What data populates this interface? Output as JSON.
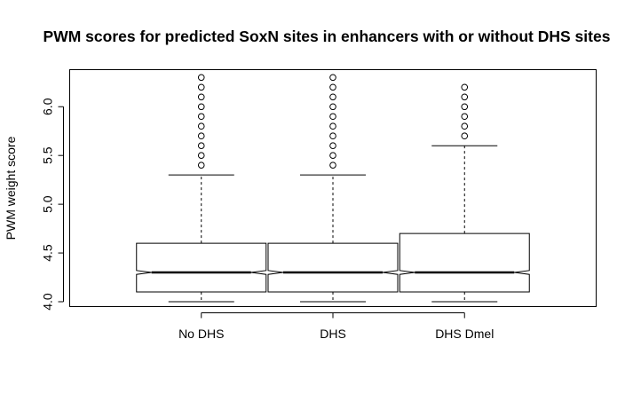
{
  "chart_data": {
    "type": "boxplot",
    "title": "PWM scores for predicted SoxN sites in enhancers with or without DHS sites",
    "xlabel": "",
    "ylabel": "PWM weight score",
    "ylim": [
      3.95,
      6.38
    ],
    "yticks": [
      4.0,
      4.5,
      5.0,
      5.5,
      6.0
    ],
    "ytick_labels": [
      "4.0",
      "4.5",
      "5.0",
      "5.5",
      "6.0"
    ],
    "notched": true,
    "grid": false,
    "categories": [
      "No DHS",
      "DHS",
      "DHS Dmel"
    ],
    "boxes": [
      {
        "name": "No DHS",
        "whisker_low": 4.0,
        "q1": 4.1,
        "median": 4.3,
        "q3": 4.6,
        "whisker_high": 5.3,
        "notch_low": 4.28,
        "notch_high": 4.32,
        "outliers": [
          5.4,
          5.5,
          5.6,
          5.7,
          5.8,
          5.9,
          6.0,
          6.1,
          6.2,
          6.3
        ]
      },
      {
        "name": "DHS",
        "whisker_low": 4.0,
        "q1": 4.1,
        "median": 4.3,
        "q3": 4.6,
        "whisker_high": 5.3,
        "notch_low": 4.28,
        "notch_high": 4.32,
        "outliers": [
          5.4,
          5.5,
          5.6,
          5.7,
          5.8,
          5.9,
          6.0,
          6.1,
          6.2,
          6.3
        ]
      },
      {
        "name": "DHS Dmel",
        "whisker_low": 4.0,
        "q1": 4.1,
        "median": 4.3,
        "q3": 4.7,
        "whisker_high": 5.6,
        "notch_low": 4.28,
        "notch_high": 4.32,
        "outliers": [
          5.7,
          5.8,
          5.9,
          6.0,
          6.1,
          6.2
        ]
      }
    ]
  }
}
